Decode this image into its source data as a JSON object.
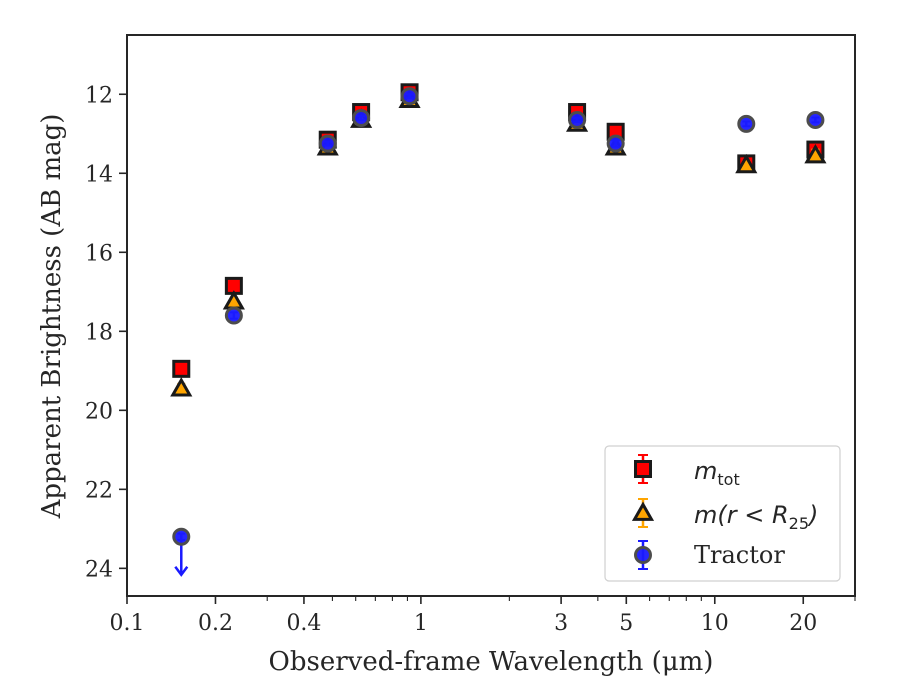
{
  "chart_data": {
    "type": "scatter",
    "xlabel": "Observed-frame Wavelength (μm)",
    "ylabel": "Apparent Brightness (AB mag)",
    "xscale": "log",
    "xlim": [
      0.1,
      30
    ],
    "ylim": [
      24.7,
      10.5
    ],
    "y_inverted": true,
    "x_ticks": [
      {
        "value": 0.1,
        "label": "0.1"
      },
      {
        "value": 0.2,
        "label": "0.2"
      },
      {
        "value": 0.4,
        "label": "0.4"
      },
      {
        "value": 1,
        "label": "1"
      },
      {
        "value": 3,
        "label": "3"
      },
      {
        "value": 5,
        "label": "5"
      },
      {
        "value": 10,
        "label": "10"
      },
      {
        "value": 20,
        "label": "20"
      }
    ],
    "x_minor_ticks": [
      0.3,
      0.5,
      0.6,
      0.7,
      0.8,
      0.9,
      2,
      4,
      6,
      7,
      8,
      9,
      30
    ],
    "y_ticks": [
      {
        "value": 12,
        "label": "12"
      },
      {
        "value": 14,
        "label": "14"
      },
      {
        "value": 16,
        "label": "16"
      },
      {
        "value": 18,
        "label": "18"
      },
      {
        "value": 20,
        "label": "20"
      },
      {
        "value": 22,
        "label": "22"
      },
      {
        "value": 24,
        "label": "24"
      }
    ],
    "grid": false,
    "legend_position": "bottom-right",
    "series": [
      {
        "name": "m_tot",
        "legend_main": "m",
        "legend_sub": "tot",
        "marker": "square",
        "color": "#ff0000",
        "edge_color": "#1a1a1a",
        "error_color": "#ff0000",
        "x": [
          0.153,
          0.231,
          0.482,
          0.626,
          0.915,
          3.4,
          4.6,
          12.8,
          22.0
        ],
        "y": [
          18.95,
          16.85,
          13.15,
          12.45,
          11.95,
          12.45,
          12.95,
          13.75,
          13.4
        ],
        "yerr": [
          0.12,
          0.1,
          0.05,
          0.05,
          0.05,
          0.05,
          0.1,
          0.1,
          0.15
        ]
      },
      {
        "name": "m(r < R25)",
        "legend_main": "m(r < R",
        "legend_sub": "25",
        "legend_tail": ")",
        "marker": "triangle",
        "color": "#ffa500",
        "edge_color": "#1a1a1a",
        "error_color": "#ffa500",
        "x": [
          0.153,
          0.231,
          0.482,
          0.626,
          0.915,
          3.4,
          4.6,
          12.8,
          22.0
        ],
        "y": [
          19.45,
          17.25,
          13.35,
          12.65,
          12.15,
          12.75,
          13.35,
          13.8,
          13.55
        ],
        "yerr": [
          0.12,
          0.1,
          0.05,
          0.05,
          0.05,
          0.05,
          0.1,
          0.1,
          0.15
        ]
      },
      {
        "name": "Tractor",
        "marker": "circle",
        "color": "#1a1aff",
        "edge_color": "#4d4d4d",
        "error_color": "#1a1aff",
        "x": [
          0.153,
          0.231,
          0.482,
          0.626,
          0.915,
          3.4,
          4.6,
          12.8,
          22.0
        ],
        "y": [
          23.2,
          17.6,
          13.25,
          12.6,
          12.05,
          12.65,
          13.25,
          12.75,
          12.65
        ],
        "yerr": [
          0.08,
          0.08,
          0.05,
          0.05,
          0.05,
          0.05,
          0.08,
          0.06,
          0.06
        ],
        "upper_limit_index": 0
      }
    ]
  }
}
